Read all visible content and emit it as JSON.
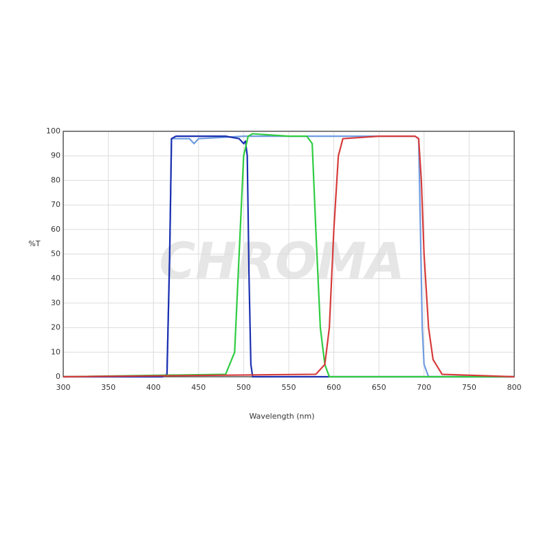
{
  "chart_data": {
    "type": "line",
    "watermark": "CHROMA",
    "y_label": "%T",
    "x_label": "Wavelength (nm)",
    "xlim": [
      300,
      800
    ],
    "xticks": [
      300,
      350,
      400,
      450,
      500,
      550,
      600,
      650,
      700,
      750,
      800
    ],
    "ylim": [
      0,
      100
    ],
    "yticks": [
      0,
      10,
      20,
      30,
      40,
      50,
      60,
      70,
      80,
      90,
      100
    ],
    "grid": true,
    "series": [
      {
        "color": "#6f9be0",
        "x": [
          300,
          410,
          415,
          418,
          420,
          440,
          445,
          450,
          500,
          550,
          600,
          650,
          690,
          694,
          696,
          698,
          700,
          705,
          800
        ],
        "values": [
          0,
          0,
          1,
          50,
          97,
          97,
          95,
          97,
          98,
          98,
          98,
          98,
          98,
          97,
          60,
          20,
          5,
          0,
          0
        ]
      },
      {
        "color": "#1a2fb0",
        "x": [
          300,
          410,
          415,
          418,
          420,
          425,
          440,
          460,
          480,
          495,
          500,
          502,
          504,
          506,
          508,
          510,
          800
        ],
        "values": [
          0,
          0,
          1,
          50,
          97,
          98,
          98,
          98,
          98,
          97,
          95,
          96,
          90,
          40,
          5,
          0,
          0
        ]
      },
      {
        "color": "#2ecc40",
        "x": [
          300,
          480,
          490,
          495,
          500,
          505,
          510,
          550,
          570,
          576,
          580,
          585,
          590,
          595,
          800
        ],
        "values": [
          0,
          1,
          10,
          50,
          90,
          98,
          99,
          98,
          98,
          95,
          60,
          20,
          5,
          0,
          0
        ]
      },
      {
        "color": "#d63b3b",
        "x": [
          300,
          580,
          590,
          595,
          600,
          605,
          610,
          650,
          690,
          694,
          697,
          700,
          705,
          710,
          720,
          800
        ],
        "values": [
          0,
          1,
          5,
          20,
          60,
          90,
          97,
          98,
          98,
          97,
          80,
          50,
          20,
          7,
          1,
          0
        ]
      }
    ]
  }
}
